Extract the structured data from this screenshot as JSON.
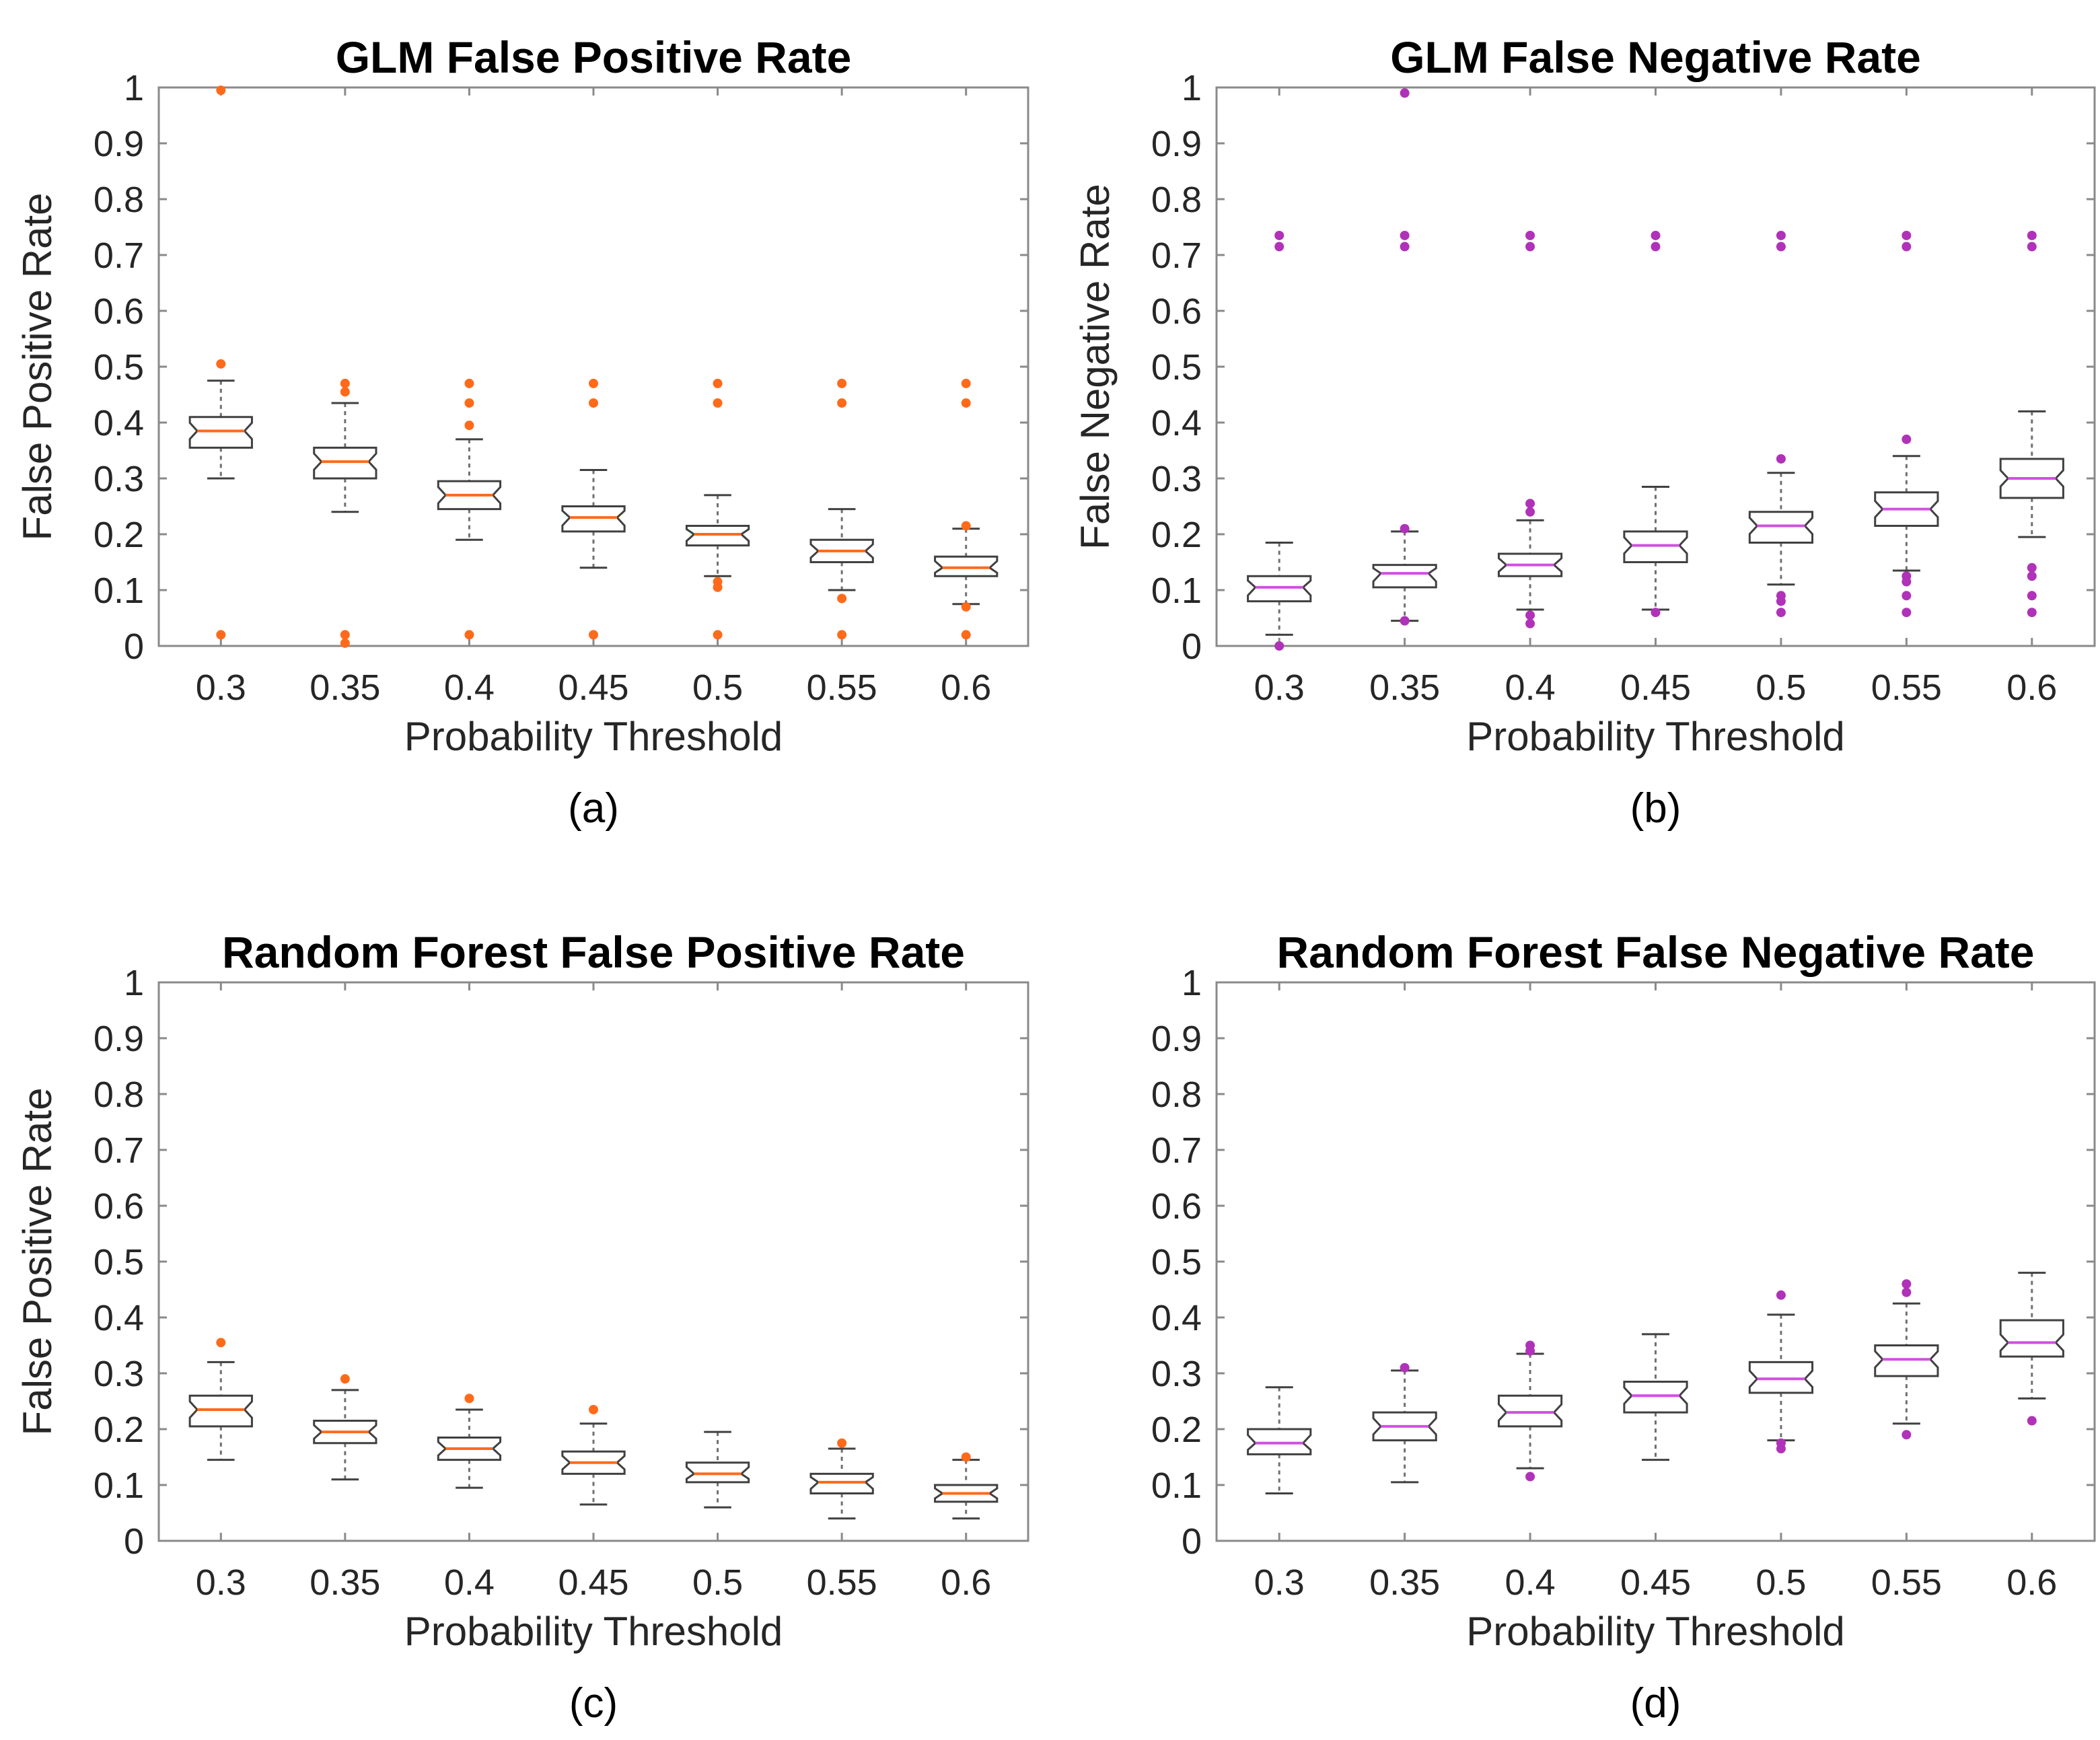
{
  "chart_data": [
    {
      "type": "box",
      "panel": "(a)",
      "title": "GLM False Positive Rate",
      "xlabel": "Probability Threshold",
      "ylabel": "False Positive Rate",
      "ylim": [
        0,
        1
      ],
      "yticks": [
        "0",
        "0.1",
        "0.2",
        "0.3",
        "0.4",
        "0.5",
        "0.6",
        "0.7",
        "0.8",
        "0.9",
        "1"
      ],
      "categories": [
        "0.3",
        "0.35",
        "0.4",
        "0.45",
        "0.5",
        "0.55",
        "0.6"
      ],
      "marker_color": "#ff6a1a",
      "median_color": "#ff6a1a",
      "boxes": [
        {
          "whisker_low": 0.3,
          "q1": 0.355,
          "median": 0.385,
          "q3": 0.41,
          "whisker_high": 0.475,
          "outliers": [
            0.02,
            0.505,
            0.995
          ]
        },
        {
          "whisker_low": 0.24,
          "q1": 0.3,
          "median": 0.33,
          "q3": 0.355,
          "whisker_high": 0.435,
          "outliers": [
            0.005,
            0.02,
            0.455,
            0.47
          ]
        },
        {
          "whisker_low": 0.19,
          "q1": 0.245,
          "median": 0.27,
          "q3": 0.295,
          "whisker_high": 0.37,
          "outliers": [
            0.02,
            0.395,
            0.435,
            0.47
          ]
        },
        {
          "whisker_low": 0.14,
          "q1": 0.205,
          "median": 0.23,
          "q3": 0.25,
          "whisker_high": 0.315,
          "outliers": [
            0.02,
            0.435,
            0.47
          ]
        },
        {
          "whisker_low": 0.125,
          "q1": 0.18,
          "median": 0.2,
          "q3": 0.215,
          "whisker_high": 0.27,
          "outliers": [
            0.02,
            0.105,
            0.115,
            0.435,
            0.47
          ]
        },
        {
          "whisker_low": 0.1,
          "q1": 0.15,
          "median": 0.17,
          "q3": 0.19,
          "whisker_high": 0.245,
          "outliers": [
            0.02,
            0.085,
            0.435,
            0.47
          ]
        },
        {
          "whisker_low": 0.075,
          "q1": 0.125,
          "median": 0.14,
          "q3": 0.16,
          "whisker_high": 0.21,
          "outliers": [
            0.02,
            0.07,
            0.215,
            0.435,
            0.47
          ]
        }
      ]
    },
    {
      "type": "box",
      "panel": "(b)",
      "title": "GLM False Negative Rate",
      "xlabel": "Probability Threshold",
      "ylabel": "False Negative Rate",
      "ylim": [
        0,
        1
      ],
      "yticks": [
        "0",
        "0.1",
        "0.2",
        "0.3",
        "0.4",
        "0.5",
        "0.6",
        "0.7",
        "0.8",
        "0.9",
        "1"
      ],
      "categories": [
        "0.3",
        "0.35",
        "0.4",
        "0.45",
        "0.5",
        "0.55",
        "0.6"
      ],
      "marker_color": "#b032b8",
      "median_color": "#d050e0",
      "boxes": [
        {
          "whisker_low": 0.02,
          "q1": 0.08,
          "median": 0.105,
          "q3": 0.125,
          "whisker_high": 0.185,
          "outliers": [
            0.0,
            0.715,
            0.735
          ]
        },
        {
          "whisker_low": 0.045,
          "q1": 0.105,
          "median": 0.13,
          "q3": 0.145,
          "whisker_high": 0.205,
          "outliers": [
            0.045,
            0.21,
            0.715,
            0.735,
            0.99
          ]
        },
        {
          "whisker_low": 0.065,
          "q1": 0.125,
          "median": 0.145,
          "q3": 0.165,
          "whisker_high": 0.225,
          "outliers": [
            0.04,
            0.055,
            0.24,
            0.255,
            0.715,
            0.735
          ]
        },
        {
          "whisker_low": 0.065,
          "q1": 0.15,
          "median": 0.18,
          "q3": 0.205,
          "whisker_high": 0.285,
          "outliers": [
            0.06,
            0.715,
            0.735
          ]
        },
        {
          "whisker_low": 0.11,
          "q1": 0.185,
          "median": 0.215,
          "q3": 0.24,
          "whisker_high": 0.31,
          "outliers": [
            0.06,
            0.08,
            0.09,
            0.335,
            0.715,
            0.735
          ]
        },
        {
          "whisker_low": 0.135,
          "q1": 0.215,
          "median": 0.245,
          "q3": 0.275,
          "whisker_high": 0.34,
          "outliers": [
            0.06,
            0.09,
            0.115,
            0.125,
            0.37,
            0.715,
            0.735
          ]
        },
        {
          "whisker_low": 0.195,
          "q1": 0.265,
          "median": 0.3,
          "q3": 0.335,
          "whisker_high": 0.42,
          "outliers": [
            0.06,
            0.09,
            0.125,
            0.14,
            0.715,
            0.735
          ]
        }
      ]
    },
    {
      "type": "box",
      "panel": "(c)",
      "title": "Random Forest False Positive Rate",
      "xlabel": "Probability Threshold",
      "ylabel": "False Positive Rate",
      "ylim": [
        0,
        1
      ],
      "yticks": [
        "0",
        "0.1",
        "0.2",
        "0.3",
        "0.4",
        "0.5",
        "0.6",
        "0.7",
        "0.8",
        "0.9",
        "1"
      ],
      "categories": [
        "0.3",
        "0.35",
        "0.4",
        "0.45",
        "0.5",
        "0.55",
        "0.6"
      ],
      "marker_color": "#ff6a1a",
      "median_color": "#ff6a1a",
      "boxes": [
        {
          "whisker_low": 0.145,
          "q1": 0.205,
          "median": 0.235,
          "q3": 0.26,
          "whisker_high": 0.32,
          "outliers": [
            0.355
          ]
        },
        {
          "whisker_low": 0.11,
          "q1": 0.175,
          "median": 0.195,
          "q3": 0.215,
          "whisker_high": 0.27,
          "outliers": [
            0.29
          ]
        },
        {
          "whisker_low": 0.095,
          "q1": 0.145,
          "median": 0.165,
          "q3": 0.185,
          "whisker_high": 0.235,
          "outliers": [
            0.255
          ]
        },
        {
          "whisker_low": 0.065,
          "q1": 0.12,
          "median": 0.14,
          "q3": 0.16,
          "whisker_high": 0.21,
          "outliers": [
            0.235
          ]
        },
        {
          "whisker_low": 0.06,
          "q1": 0.105,
          "median": 0.12,
          "q3": 0.14,
          "whisker_high": 0.195,
          "outliers": []
        },
        {
          "whisker_low": 0.04,
          "q1": 0.085,
          "median": 0.105,
          "q3": 0.12,
          "whisker_high": 0.165,
          "outliers": [
            0.175
          ]
        },
        {
          "whisker_low": 0.04,
          "q1": 0.07,
          "median": 0.085,
          "q3": 0.1,
          "whisker_high": 0.145,
          "outliers": [
            0.15
          ]
        }
      ]
    },
    {
      "type": "box",
      "panel": "(d)",
      "title": "Random Forest False Negative Rate",
      "xlabel": "Probability Threshold",
      "ylabel": "",
      "ylim": [
        0,
        1
      ],
      "yticks": [
        "0",
        "0.1",
        "0.2",
        "0.3",
        "0.4",
        "0.5",
        "0.6",
        "0.7",
        "0.8",
        "0.9",
        "1"
      ],
      "categories": [
        "0.3",
        "0.35",
        "0.4",
        "0.45",
        "0.5",
        "0.55",
        "0.6"
      ],
      "marker_color": "#b032b8",
      "median_color": "#d050e0",
      "boxes": [
        {
          "whisker_low": 0.085,
          "q1": 0.155,
          "median": 0.175,
          "q3": 0.2,
          "whisker_high": 0.275,
          "outliers": []
        },
        {
          "whisker_low": 0.105,
          "q1": 0.18,
          "median": 0.205,
          "q3": 0.23,
          "whisker_high": 0.305,
          "outliers": [
            0.31
          ]
        },
        {
          "whisker_low": 0.13,
          "q1": 0.205,
          "median": 0.23,
          "q3": 0.26,
          "whisker_high": 0.335,
          "outliers": [
            0.115,
            0.34,
            0.35
          ]
        },
        {
          "whisker_low": 0.145,
          "q1": 0.23,
          "median": 0.26,
          "q3": 0.285,
          "whisker_high": 0.37,
          "outliers": []
        },
        {
          "whisker_low": 0.18,
          "q1": 0.265,
          "median": 0.29,
          "q3": 0.32,
          "whisker_high": 0.405,
          "outliers": [
            0.165,
            0.175,
            0.44
          ]
        },
        {
          "whisker_low": 0.21,
          "q1": 0.295,
          "median": 0.325,
          "q3": 0.35,
          "whisker_high": 0.425,
          "outliers": [
            0.19,
            0.445,
            0.46
          ]
        },
        {
          "whisker_low": 0.255,
          "q1": 0.33,
          "median": 0.355,
          "q3": 0.395,
          "whisker_high": 0.48,
          "outliers": [
            0.215
          ]
        }
      ]
    }
  ]
}
